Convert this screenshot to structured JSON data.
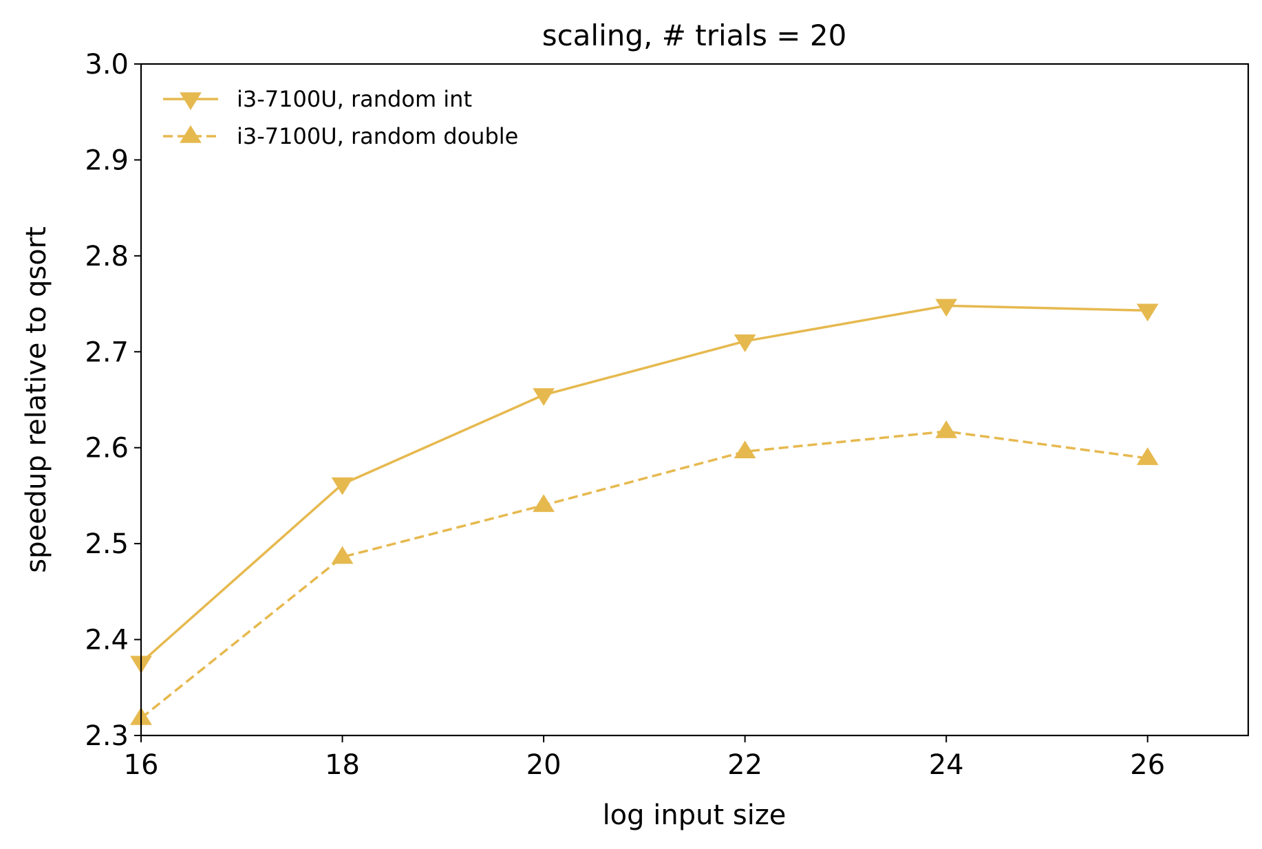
{
  "chart_data": {
    "type": "line",
    "title": "scaling, # trials = 20",
    "xlabel": "log input size",
    "ylabel": "speedup relative to qsort",
    "xlim": [
      16,
      27
    ],
    "ylim": [
      2.3,
      3.0
    ],
    "xticks": [
      16,
      18,
      20,
      22,
      24,
      26
    ],
    "yticks": [
      2.3,
      2.4,
      2.5,
      2.6,
      2.7,
      2.8,
      2.9,
      3.0
    ],
    "xtick_labels": [
      "16",
      "18",
      "20",
      "22",
      "24",
      "26"
    ],
    "ytick_labels": [
      "2.3",
      "2.4",
      "2.5",
      "2.6",
      "2.7",
      "2.8",
      "2.9",
      "3.0"
    ],
    "grid": false,
    "legend_position": "top-left",
    "x": [
      16,
      18,
      20,
      22,
      24,
      26
    ],
    "series": [
      {
        "name": "i3-7100U, random int",
        "values": [
          2.376,
          2.562,
          2.655,
          2.711,
          2.748,
          2.743
        ],
        "color": "#E6B94F",
        "line_style": "solid",
        "marker": "triangle-down"
      },
      {
        "name": "i3-7100U, random double",
        "values": [
          2.318,
          2.486,
          2.54,
          2.596,
          2.617,
          2.589
        ],
        "color": "#E6B94F",
        "line_style": "dashed",
        "marker": "triangle-up"
      }
    ]
  }
}
